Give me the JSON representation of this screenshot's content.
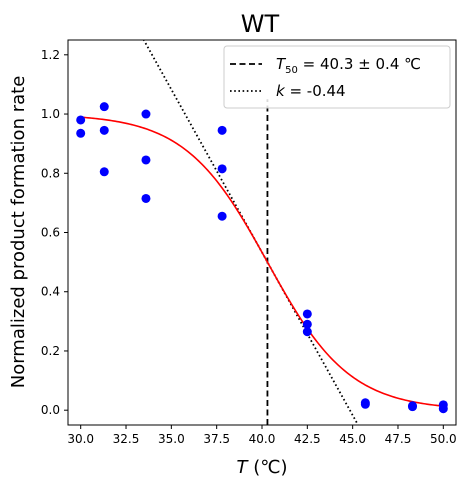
{
  "chart_data": {
    "type": "scatter",
    "title": "WT",
    "xlabel": "T (℃)",
    "ylabel": "Normalized product formation rate",
    "xlim": [
      29.3,
      50.7
    ],
    "ylim": [
      -0.05,
      1.25
    ],
    "xticks": [
      "30.0",
      "32.5",
      "35.0",
      "37.5",
      "40.0",
      "42.5",
      "45.0",
      "47.5",
      "50.0"
    ],
    "yticks": [
      "0.0",
      "0.2",
      "0.4",
      "0.6",
      "0.8",
      "1.0",
      "1.2"
    ],
    "grid": false,
    "legend_position": "top-right",
    "colors": {
      "points": "#0000ff",
      "fit": "#ff0000",
      "lines": "#000000"
    },
    "points": [
      {
        "x": 30.0,
        "y": 0.98
      },
      {
        "x": 30.0,
        "y": 0.935
      },
      {
        "x": 31.3,
        "y": 1.025
      },
      {
        "x": 31.3,
        "y": 0.945
      },
      {
        "x": 31.3,
        "y": 0.805
      },
      {
        "x": 33.6,
        "y": 1.0
      },
      {
        "x": 33.6,
        "y": 0.845
      },
      {
        "x": 33.6,
        "y": 0.715
      },
      {
        "x": 37.8,
        "y": 0.945
      },
      {
        "x": 37.8,
        "y": 0.815
      },
      {
        "x": 37.8,
        "y": 0.655
      },
      {
        "x": 42.5,
        "y": 0.325
      },
      {
        "x": 42.5,
        "y": 0.29
      },
      {
        "x": 42.5,
        "y": 0.265
      },
      {
        "x": 45.7,
        "y": 0.025
      },
      {
        "x": 45.7,
        "y": 0.02
      },
      {
        "x": 48.3,
        "y": 0.015
      },
      {
        "x": 48.3,
        "y": 0.012
      },
      {
        "x": 50.0,
        "y": 0.018
      },
      {
        "x": 50.0,
        "y": 0.005
      }
    ],
    "fit": {
      "t50": 40.3,
      "slope_k": -0.44,
      "bottom": 0.0,
      "top": 1.0
    },
    "t50_line_ymax": 1.05,
    "legend": [
      {
        "style": "dashed",
        "label_sub": "50",
        "label_rest": " = 40.3 ± 0.4 ℃"
      },
      {
        "style": "dotted",
        "label_rest": " = -0.44"
      }
    ]
  }
}
